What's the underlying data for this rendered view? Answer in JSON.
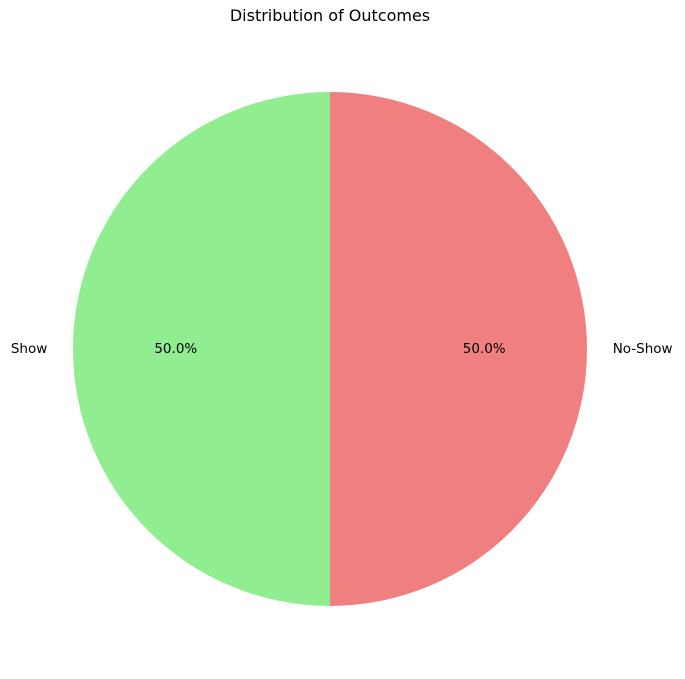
{
  "chart_data": {
    "type": "pie",
    "title": "Distribution of Outcomes",
    "slices": [
      {
        "label": "Show",
        "value": 50.0,
        "percent_label": "50.0%",
        "color": "#90ee90"
      },
      {
        "label": "No-Show",
        "value": 50.0,
        "percent_label": "50.0%",
        "color": "#f08080"
      }
    ],
    "start_angle_deg": 90,
    "direction": "counterclockwise",
    "legend": "none"
  }
}
